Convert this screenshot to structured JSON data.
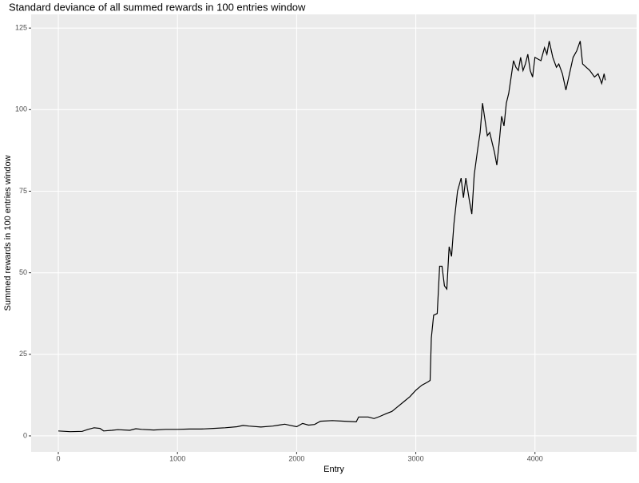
{
  "chart_data": {
    "type": "line",
    "title": "Standard deviance of all summed rewards in 100 entries window",
    "x_label": "Entry",
    "y_label": "Summed rewards in 100 entries window",
    "xlim": [
      -228,
      4853
    ],
    "ylim": [
      -4.9,
      129.2
    ],
    "xticks": [
      0,
      1000,
      2000,
      3000,
      4000
    ],
    "yticks": [
      0,
      25,
      50,
      75,
      100,
      125
    ],
    "grid": true,
    "series": [
      {
        "name": "Summed rewards",
        "color": "#000000",
        "x": [
          0,
          100,
          200,
          250,
          300,
          350,
          380,
          450,
          500,
          600,
          650,
          700,
          800,
          900,
          1000,
          1100,
          1200,
          1300,
          1400,
          1500,
          1550,
          1600,
          1700,
          1800,
          1850,
          1900,
          1950,
          2000,
          2050,
          2100,
          2150,
          2200,
          2300,
          2400,
          2500,
          2520,
          2600,
          2650,
          2700,
          2750,
          2800,
          2850,
          2900,
          2950,
          3000,
          3050,
          3100,
          3120,
          3130,
          3150,
          3180,
          3200,
          3220,
          3240,
          3260,
          3280,
          3300,
          3320,
          3350,
          3380,
          3400,
          3420,
          3450,
          3470,
          3490,
          3520,
          3540,
          3560,
          3580,
          3600,
          3620,
          3640,
          3660,
          3680,
          3700,
          3720,
          3740,
          3760,
          3780,
          3800,
          3820,
          3840,
          3860,
          3880,
          3900,
          3920,
          3940,
          3960,
          3980,
          4000,
          4050,
          4080,
          4100,
          4120,
          4150,
          4180,
          4200,
          4230,
          4260,
          4290,
          4320,
          4350,
          4380,
          4400,
          4430,
          4460,
          4500,
          4530,
          4560,
          4580,
          4590
        ],
        "values": [
          1.5,
          1.3,
          1.4,
          2.0,
          2.5,
          2.3,
          1.5,
          1.7,
          1.9,
          1.7,
          2.2,
          2.0,
          1.8,
          2.0,
          2.0,
          2.1,
          2.1,
          2.3,
          2.5,
          2.8,
          3.2,
          3.0,
          2.7,
          3.0,
          3.3,
          3.6,
          3.2,
          2.8,
          3.8,
          3.3,
          3.5,
          4.5,
          4.7,
          4.5,
          4.3,
          5.8,
          5.8,
          5.3,
          6.0,
          6.8,
          7.5,
          9.0,
          10.5,
          12,
          14,
          15.5,
          16.5,
          17,
          30,
          37,
          37.5,
          52,
          52,
          46,
          45,
          58,
          55,
          65,
          75,
          79,
          73,
          79,
          72,
          68,
          80,
          88,
          93,
          102,
          97,
          92,
          93,
          90,
          87,
          83,
          90,
          98,
          95,
          102,
          105,
          110,
          115,
          113,
          112,
          116,
          112,
          114,
          117,
          112,
          110,
          116,
          115,
          119,
          117,
          121,
          116,
          113,
          114,
          111,
          106,
          111,
          116,
          118,
          121,
          114,
          113,
          112,
          110,
          111,
          108,
          111,
          109
        ]
      }
    ]
  }
}
